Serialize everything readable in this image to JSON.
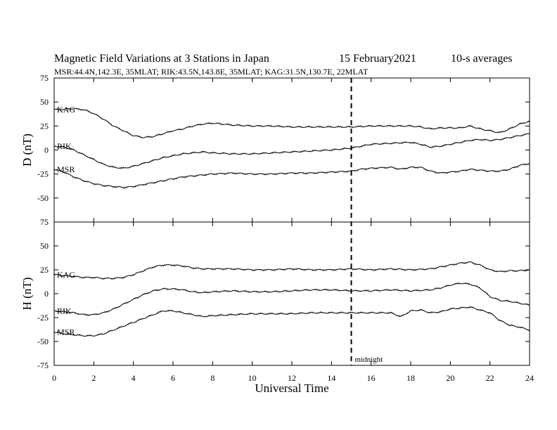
{
  "header": {
    "title": "Magnetic Field Variations at 3 Stations in Japan",
    "date": "15 February2021",
    "averaging": "10-s averages",
    "stations_line": "MSR:44.4N,142.3E, 35MLAT;  RIK:43.5N,143.8E, 35MLAT;  KAG:31.5N,130.7E, 22MLAT"
  },
  "chart_data": {
    "type": "line",
    "xlabel": "Universal Time",
    "xlim": [
      0,
      24
    ],
    "xticks": [
      0,
      2,
      4,
      6,
      8,
      10,
      12,
      14,
      16,
      18,
      20,
      22,
      24
    ],
    "marker": {
      "x": 15,
      "label": "midnight",
      "style": "dashed"
    },
    "panels": [
      {
        "ylabel": "D (nT)",
        "ylim": [
          -75,
          75
        ],
        "yticks": [
          75,
          50,
          25,
          0,
          -25,
          -50,
          -75
        ],
        "series": [
          {
            "name": "KAG",
            "x": [
              0,
              1,
              1.5,
              2,
              2.5,
              3,
              3.5,
              4,
              4.5,
              5,
              5.5,
              6,
              6.5,
              7,
              7.5,
              8,
              9,
              10,
              11,
              12,
              13,
              14,
              15,
              16,
              17,
              18,
              18.5,
              19,
              19.5,
              20,
              20.5,
              21,
              21.5,
              22,
              22.5,
              23,
              23.5,
              24
            ],
            "values": [
              42,
              43,
              42,
              38,
              32,
              25,
              20,
              15,
              13,
              14,
              17,
              20,
              22,
              25,
              27,
              28,
              26,
              25,
              25,
              24,
              24,
              24,
              24,
              25,
              25,
              25,
              24,
              22,
              23,
              23,
              23,
              25,
              22,
              20,
              18,
              22,
              27,
              30
            ]
          },
          {
            "name": "RIK",
            "x": [
              0,
              0.5,
              1,
              1.5,
              2,
              2.5,
              3,
              3.5,
              4,
              4.5,
              5,
              5.5,
              6,
              6.5,
              7,
              7.5,
              8,
              9,
              10,
              11,
              12,
              13,
              14,
              15,
              15.5,
              16,
              17,
              18,
              18.5,
              19,
              19.5,
              20,
              20.5,
              21,
              21.5,
              22,
              22.5,
              23,
              23.5,
              24
            ],
            "values": [
              4,
              3,
              0,
              -5,
              -10,
              -15,
              -18,
              -19,
              -17,
              -14,
              -11,
              -8,
              -6,
              -4,
              -3,
              -2,
              -3,
              -4,
              -4,
              -3,
              -2,
              -1,
              0,
              2,
              4,
              6,
              7,
              8,
              6,
              3,
              4,
              6,
              8,
              10,
              11,
              10,
              11,
              13,
              15,
              17
            ]
          },
          {
            "name": "MSR",
            "x": [
              0,
              0.5,
              1,
              1.5,
              2,
              2.5,
              3,
              3.5,
              4,
              4.5,
              5,
              5.5,
              6,
              6.5,
              7,
              7.5,
              8,
              9,
              10,
              11,
              12,
              13,
              14,
              15,
              15.5,
              16,
              17,
              17.5,
              18,
              18.5,
              19,
              19.5,
              20,
              20.5,
              21,
              21.5,
              22,
              22.5,
              23,
              23.5,
              24
            ],
            "values": [
              -20,
              -23,
              -28,
              -32,
              -35,
              -37,
              -38,
              -39,
              -38,
              -36,
              -34,
              -32,
              -30,
              -28,
              -27,
              -26,
              -25,
              -24,
              -25,
              -25,
              -24,
              -24,
              -23,
              -22,
              -20,
              -19,
              -18,
              -20,
              -18,
              -18,
              -22,
              -24,
              -23,
              -22,
              -20,
              -21,
              -22,
              -22,
              -20,
              -16,
              -14
            ]
          }
        ]
      },
      {
        "ylabel": "H (nT)",
        "ylim": [
          -75,
          75
        ],
        "yticks": [
          75,
          50,
          25,
          0,
          -25,
          -50,
          -75
        ],
        "series": [
          {
            "name": "KAG",
            "x": [
              0,
              1,
              1.5,
              2,
              2.5,
              3,
              3.5,
              4,
              4.5,
              5,
              5.5,
              6,
              6.5,
              7,
              7.5,
              8,
              9,
              10,
              11,
              12,
              13,
              14,
              15,
              16,
              17,
              18,
              19,
              19.5,
              20,
              20.5,
              21,
              21.5,
              22,
              22.5,
              23,
              23.5,
              24
            ],
            "values": [
              20,
              18,
              17,
              17,
              16,
              16,
              17,
              20,
              24,
              28,
              30,
              30,
              29,
              27,
              26,
              26,
              26,
              25,
              25,
              26,
              25,
              25,
              26,
              25,
              26,
              25,
              26,
              28,
              30,
              32,
              33,
              30,
              25,
              23,
              24,
              24,
              25
            ]
          },
          {
            "name": "RIK",
            "x": [
              0,
              0.5,
              1,
              1.5,
              2,
              2.5,
              3,
              3.5,
              4,
              4.5,
              5,
              5.5,
              6,
              6.5,
              7,
              7.5,
              8,
              9,
              10,
              11,
              12,
              13,
              14,
              15,
              16,
              17,
              18,
              19,
              19.5,
              20,
              20.5,
              21,
              21.5,
              22,
              22.5,
              23,
              23.5,
              24
            ],
            "values": [
              -18,
              -19,
              -20,
              -22,
              -22,
              -20,
              -16,
              -11,
              -6,
              -1,
              3,
              5,
              5,
              4,
              2,
              1,
              2,
              3,
              2,
              2,
              3,
              4,
              4,
              3,
              3,
              4,
              3,
              4,
              6,
              9,
              11,
              10,
              6,
              -3,
              -7,
              -8,
              -10,
              -12
            ]
          },
          {
            "name": "MSR",
            "x": [
              0,
              0.5,
              1,
              1.5,
              2,
              2.5,
              3,
              3.5,
              4,
              4.5,
              5,
              5.5,
              6,
              6.5,
              7,
              7.5,
              8,
              9,
              10,
              11,
              12,
              13,
              14,
              15,
              16,
              17,
              17.5,
              18,
              18.5,
              19,
              19.5,
              20,
              20.5,
              21,
              21.5,
              22,
              22.5,
              23,
              23.5,
              24
            ],
            "values": [
              -40,
              -42,
              -43,
              -44,
              -44,
              -42,
              -38,
              -34,
              -30,
              -26,
              -22,
              -18,
              -18,
              -20,
              -22,
              -24,
              -23,
              -22,
              -21,
              -21,
              -21,
              -20,
              -20,
              -20,
              -20,
              -20,
              -24,
              -18,
              -17,
              -20,
              -19,
              -16,
              -15,
              -14,
              -17,
              -20,
              -28,
              -33,
              -35,
              -38
            ]
          }
        ]
      }
    ]
  }
}
